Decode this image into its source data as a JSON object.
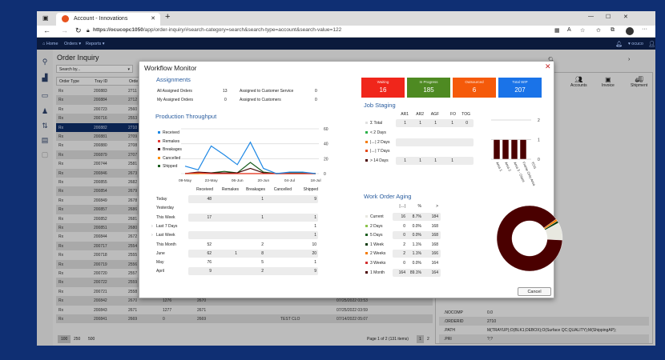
{
  "browser": {
    "tab_title": "Account - Innovations",
    "url_host": "https://ocucopc1050",
    "url_path": "/app/order-inquiry/#search-category=search&search-type=account&search-value=122"
  },
  "nav": {
    "home": "Home",
    "orders": "Orders ▾",
    "reports": "Reports ▾",
    "user": "▾ ocuco"
  },
  "page": {
    "title": "Order Inquiry",
    "search_placeholder": "Search by...",
    "columns": [
      "Order Type",
      "Tray ID",
      "Orde"
    ],
    "rows": [
      [
        "Rx",
        "200883",
        "2711"
      ],
      [
        "Rx",
        "200884",
        "2712"
      ],
      [
        "Rx",
        "200723",
        "2560"
      ],
      [
        "Rx",
        "200716",
        "2553"
      ],
      [
        "Rx",
        "200882",
        "2710"
      ],
      [
        "Rx",
        "200881",
        "2709"
      ],
      [
        "Rx",
        "200880",
        "2708"
      ],
      [
        "Rx",
        "200879",
        "2707"
      ],
      [
        "Rx",
        "200744",
        "2581"
      ],
      [
        "Rx",
        "200846",
        "2673"
      ],
      [
        "Rx",
        "200855",
        "2682"
      ],
      [
        "Rx",
        "200854",
        "2679"
      ],
      [
        "Rx",
        "200849",
        "2678"
      ],
      [
        "Rx",
        "200857",
        "2686"
      ],
      [
        "Rx",
        "200852",
        "2681"
      ],
      [
        "Rx",
        "200851",
        "2680"
      ],
      [
        "Rx",
        "200844",
        "2672"
      ],
      [
        "Rx",
        "200717",
        "2554"
      ],
      [
        "Rx",
        "200718",
        "2555"
      ],
      [
        "Rx",
        "200719",
        "2556"
      ],
      [
        "Rx",
        "200720",
        "2557"
      ],
      [
        "Rx",
        "200722",
        "2559"
      ],
      [
        "Rx",
        "200721",
        "2558"
      ],
      [
        "Rx",
        "200842",
        "2670",
        "1276",
        "2670",
        "",
        "07/25/2022 03:53"
      ],
      [
        "Rx",
        "200843",
        "2671",
        "1277",
        "2671",
        "",
        "07/25/2022 03:59"
      ],
      [
        "Rx",
        "200841",
        "2669",
        "0",
        "2669",
        "TEST CLO",
        "07/14/2022 05:07"
      ]
    ],
    "page_sizes": [
      "100",
      "250",
      "500"
    ],
    "paging": "Page 1 of 2 (131 items)",
    "pages": [
      "1",
      "2"
    ]
  },
  "right_panel": {
    "actions": [
      "Accounts",
      "Invoice",
      "Shipment"
    ],
    "props": [
      [
        ".NOCOMP",
        "0.0"
      ],
      [
        ".ORDERID",
        "2710"
      ],
      [
        ".PATH",
        "M(TRAYUP);O(BLK1;DEBOX);O(Surface QC;QUALITY);M(ShippingAP);"
      ],
      [
        ".PRI",
        "?;?"
      ],
      [
        ".SIZADJ",
        "0.20"
      ]
    ]
  },
  "modal": {
    "title": "Workflow Monitor",
    "cancel": "Cancel",
    "assignments": {
      "heading": "Assignments",
      "items": [
        [
          "All Assigned Orders",
          "13"
        ],
        [
          "My Assigned Orders",
          "0"
        ],
        [
          "Assigned to Customer Service",
          "0"
        ],
        [
          "Assigned to Customers",
          "0"
        ]
      ]
    },
    "throughput": {
      "heading": "Production Throughput",
      "columns": [
        "Received",
        "Remakes",
        "Breakages",
        "Cancelled",
        "Shipped"
      ],
      "rows": [
        [
          "Today",
          "48",
          "",
          "1",
          "",
          "9"
        ],
        [
          "Yesterday",
          "",
          "",
          "",
          "",
          ""
        ],
        [
          "This Week",
          "17",
          "",
          "1",
          "",
          "1"
        ],
        [
          "Last 7 Days",
          "",
          "",
          "",
          "",
          "1"
        ],
        [
          "Last Week",
          "",
          "",
          "",
          "",
          "1"
        ],
        [
          "This Month",
          "52",
          "",
          "2",
          "",
          "10"
        ],
        [
          "June",
          "62",
          "1",
          "8",
          "",
          "20"
        ],
        [
          "May",
          "76",
          "",
          "5",
          "",
          "1"
        ],
        [
          "April",
          "9",
          "",
          "2",
          "",
          "9"
        ]
      ]
    },
    "tiles": [
      {
        "label": "Waiting",
        "value": "16",
        "color": "#f0261b"
      },
      {
        "label": "In Progress",
        "value": "185",
        "color": "#4e8a22"
      },
      {
        "label": "Outsourced",
        "value": "6",
        "color": "#f55a0a"
      },
      {
        "label": "Total WIP",
        "value": "207",
        "color": "#1a73e8"
      }
    ],
    "job_staging": {
      "heading": "Job Staging",
      "columns": [
        "AR1",
        "AR2",
        "AGF",
        "FO",
        "TOG"
      ],
      "rows": [
        {
          "label": "Σ Total",
          "color": "#e0e0e0",
          "values": [
            "1",
            "1",
            "1",
            "1",
            "0"
          ]
        },
        {
          "label": "< 2 Days",
          "color": "#2bb14a",
          "values": [
            "",
            "",
            "",
            "",
            ""
          ]
        },
        {
          "label": "|↔| 2 Days",
          "color": "#f57c00",
          "values": [
            "",
            "",
            "",
            "",
            ""
          ]
        },
        {
          "label": "|↔| 7 Days",
          "color": "#e64a19",
          "values": [
            "",
            "",
            "",
            "",
            ""
          ]
        },
        {
          "label": "> 14 Days",
          "color": "#4a0000",
          "values": [
            "1",
            "1",
            "1",
            "1",
            ""
          ]
        }
      ]
    },
    "aging": {
      "heading": "Work Order Aging",
      "columns": [
        "|↔|",
        "%",
        ">"
      ],
      "rows": [
        {
          "label": "Current",
          "color": "#e8e8e0",
          "count": "16",
          "pct": "8.7%",
          "gt": "184"
        },
        {
          "label": "2 Days",
          "color": "#8bc34a",
          "count": "0",
          "pct": "0.0%",
          "gt": "168"
        },
        {
          "label": "5 Days",
          "color": "#1b5e20",
          "count": "0",
          "pct": "0.0%",
          "gt": "168"
        },
        {
          "label": "1 Week",
          "color": "#0a3a0a",
          "count": "2",
          "pct": "1.1%",
          "gt": "168"
        },
        {
          "label": "2 Weeks",
          "color": "#f57c00",
          "count": "2",
          "pct": "1.1%",
          "gt": "166"
        },
        {
          "label": "3 Weeks",
          "color": "#d32f2f",
          "count": "0",
          "pct": "0.0%",
          "gt": "164"
        },
        {
          "label": "1 Month",
          "color": "#4a0000",
          "count": "164",
          "pct": "89.1%",
          "gt": "164"
        }
      ]
    }
  },
  "chart_data": [
    {
      "type": "line",
      "title": "",
      "x": [
        "09-May",
        "16-May",
        "23-May",
        "30-May",
        "06-Jun",
        "13-Jun",
        "20-Jun",
        "27-Jun",
        "04-Jul",
        "11-Jul",
        "18-Jul"
      ],
      "xticks": [
        "09-May",
        "23-May",
        "06-Jun",
        "20-Jun",
        "04-Jul",
        "18-Jul"
      ],
      "ylim": [
        0,
        60
      ],
      "yticks": [
        "60",
        "40",
        "20",
        "0"
      ],
      "grid": true,
      "legend": "left",
      "series": [
        {
          "name": "Received",
          "color": "#1e88e5",
          "values": [
            10,
            5,
            37,
            25,
            12,
            42,
            7,
            0,
            2,
            2,
            0
          ]
        },
        {
          "name": "Remakes",
          "color": "#e53935",
          "values": [
            0,
            1,
            0,
            0,
            0,
            0,
            0,
            0,
            0,
            0,
            0
          ]
        },
        {
          "name": "Breakages",
          "color": "#3e0000",
          "values": [
            0,
            2,
            1,
            1,
            1,
            7,
            1,
            0,
            0,
            0,
            0
          ]
        },
        {
          "name": "Cancelled",
          "color": "#fb8c00",
          "values": [
            0,
            0,
            0,
            0,
            0,
            0,
            0,
            0,
            0,
            0,
            0
          ]
        },
        {
          "name": "Shipped",
          "color": "#1b5e20",
          "values": [
            0,
            0,
            1,
            3,
            1,
            15,
            2,
            0,
            1,
            1,
            0
          ]
        }
      ]
    },
    {
      "type": "bar",
      "categories": [
        "Area 1",
        "Area 2",
        "Area 3 - Glass",
        "Frame Only Area",
        "TOG"
      ],
      "values": [
        1,
        1,
        1,
        1,
        0
      ],
      "ylim": [
        0,
        2
      ],
      "yticks": [
        "2",
        "1",
        "0"
      ],
      "color": "#4a0000"
    },
    {
      "type": "pie",
      "categories": [
        "Current",
        "2 Days",
        "5 Days",
        "1 Week",
        "2 Weeks",
        "3 Weeks",
        "1 Month"
      ],
      "values": [
        16,
        0,
        0,
        2,
        2,
        0,
        164
      ]
    }
  ]
}
